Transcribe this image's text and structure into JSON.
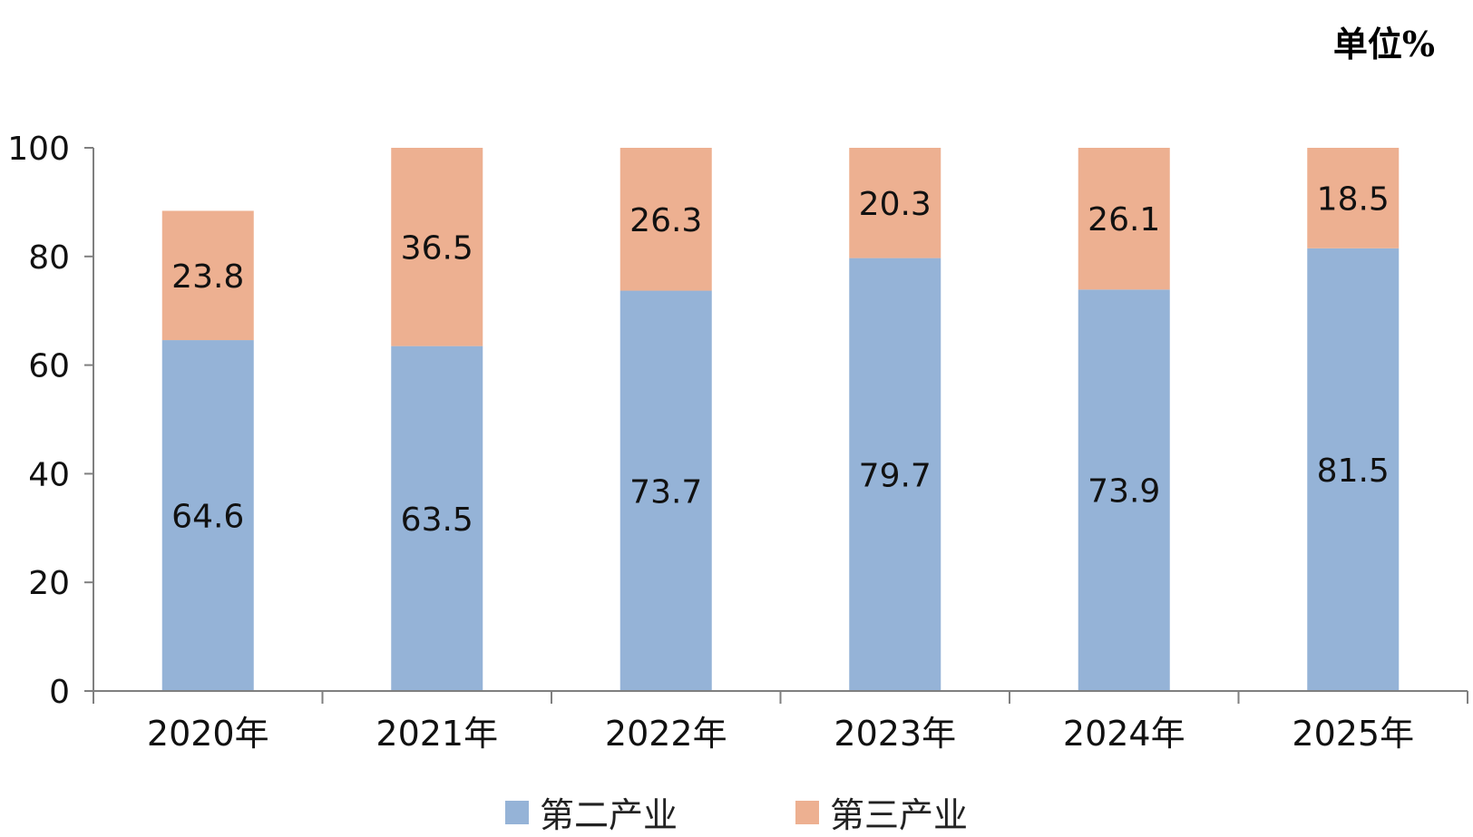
{
  "unit_label": "单位%",
  "colors": {
    "series0": "#95B3D7",
    "series1": "#EDB091",
    "axis": "#7f7f7f"
  },
  "chart_data": {
    "type": "bar",
    "stacked": true,
    "categories": [
      "2020年",
      "2021年",
      "2022年",
      "2023年",
      "2024年",
      "2025年"
    ],
    "series": [
      {
        "name": "第二产业",
        "values": [
          64.6,
          63.5,
          73.7,
          79.7,
          73.9,
          81.5
        ]
      },
      {
        "name": "第三产业",
        "values": [
          23.8,
          36.5,
          26.3,
          20.3,
          26.1,
          18.5
        ]
      }
    ],
    "yticks": [
      "0",
      "20",
      "40",
      "60",
      "80",
      "100"
    ],
    "ylim": [
      0,
      100
    ],
    "grid": false,
    "legend": "bottom"
  }
}
